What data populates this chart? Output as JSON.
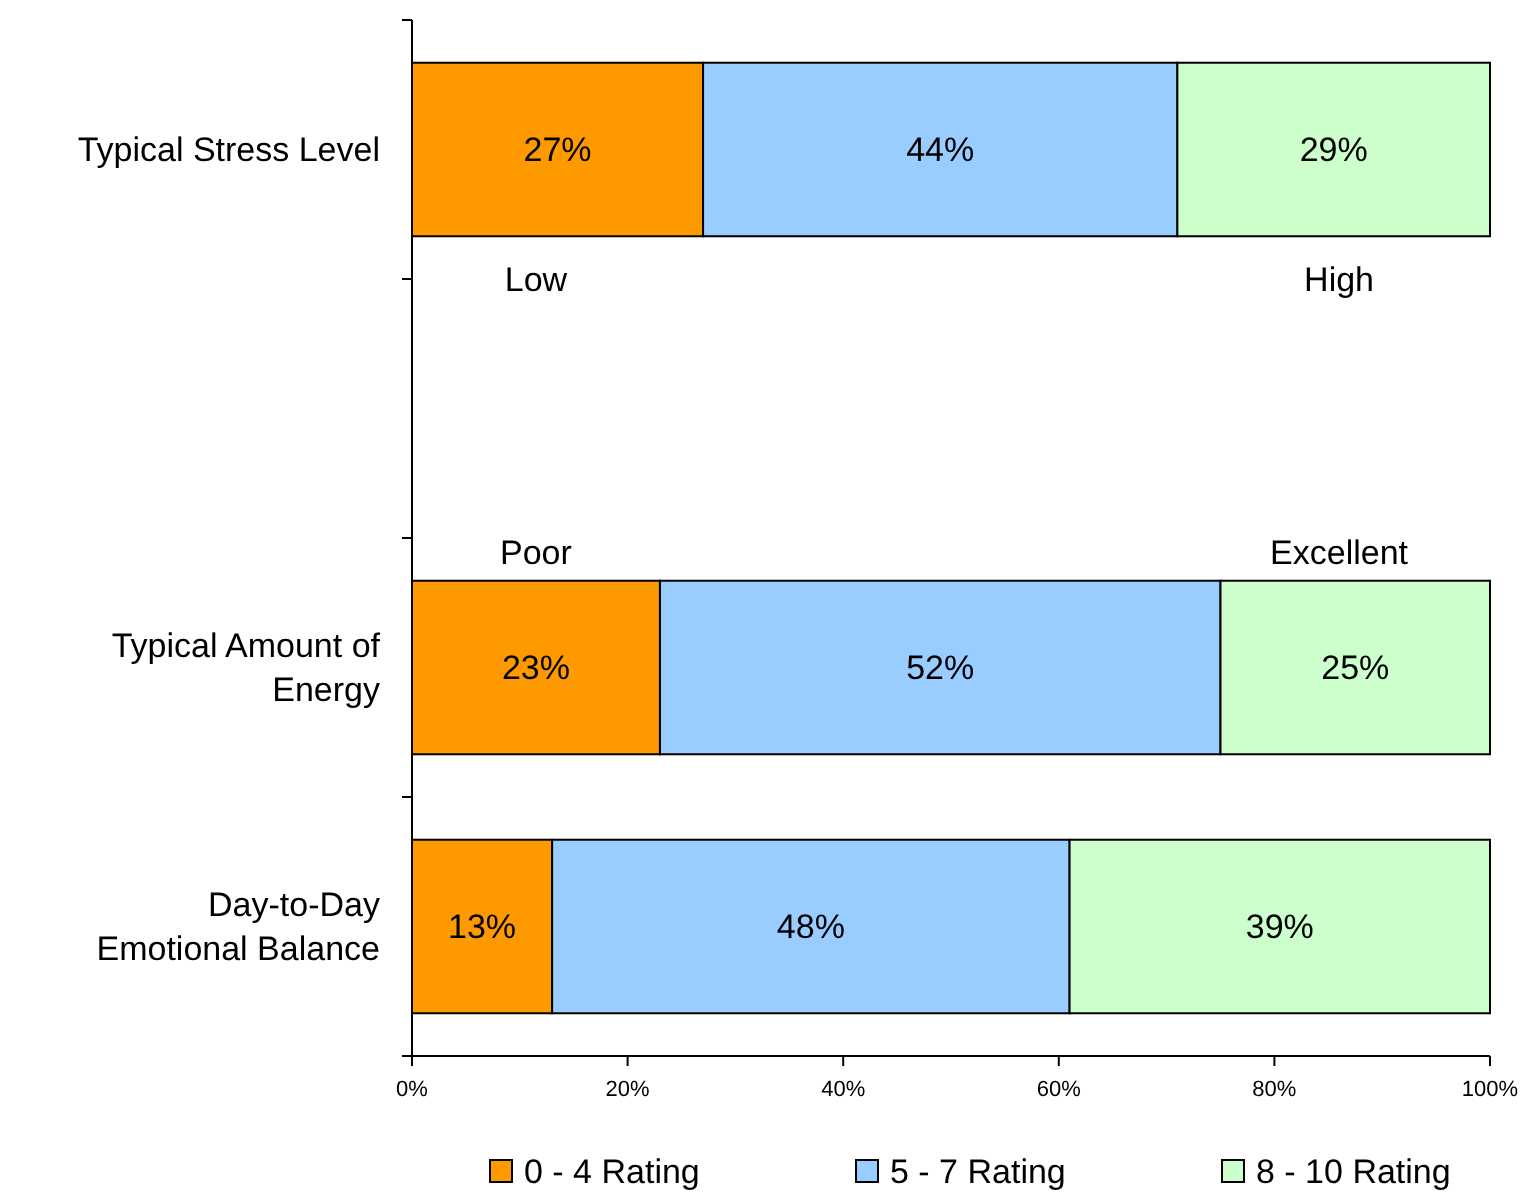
{
  "chart_data": {
    "type": "bar",
    "orientation": "horizontal",
    "stacked": true,
    "categories": [
      "Typical Stress Level",
      null,
      "Typical Amount of Energy",
      "Day-to-Day Emotional Balance"
    ],
    "series": [
      {
        "name": "0 - 4 Rating",
        "color": "#ff9900",
        "values": [
          27,
          null,
          23,
          13
        ],
        "value_labels": [
          "27%",
          null,
          "23%",
          "13%"
        ]
      },
      {
        "name": "5 - 7 Rating",
        "color": "#99ccff",
        "values": [
          44,
          null,
          52,
          48
        ],
        "value_labels": [
          "44%",
          null,
          "52%",
          "48%"
        ]
      },
      {
        "name": "8 - 10 Rating",
        "color": "#ccffcc",
        "values": [
          29,
          null,
          25,
          39
        ],
        "value_labels": [
          "29%",
          null,
          "25%",
          "39%"
        ]
      }
    ],
    "xlim": [
      0,
      100
    ],
    "xticks": [
      {
        "value": 0,
        "label": "0%"
      },
      {
        "value": 20,
        "label": "20%"
      },
      {
        "value": 40,
        "label": "40%"
      },
      {
        "value": 60,
        "label": "60%"
      },
      {
        "value": 80,
        "label": "80%"
      },
      {
        "value": 100,
        "label": "100%"
      }
    ],
    "grid": false,
    "legend": "bottom",
    "annotations": [
      "Low",
      "High",
      "Poor",
      "Excellent"
    ]
  }
}
